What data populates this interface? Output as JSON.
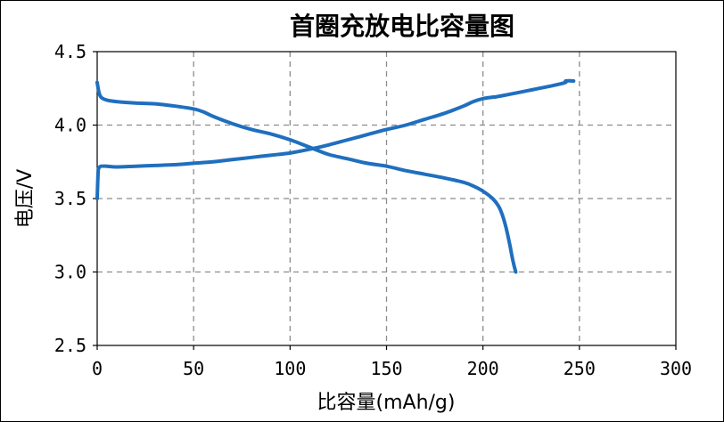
{
  "chart_data": {
    "type": "line",
    "title": "首圈充放电比容量图",
    "xlabel": "比容量(mAh/g)",
    "ylabel": "电压/V",
    "xlim": [
      0,
      300
    ],
    "ylim": [
      2.5,
      4.5
    ],
    "xticks": [
      "0",
      "50",
      "100",
      "150",
      "200",
      "250",
      "300"
    ],
    "yticks": [
      "2.5",
      "3.0",
      "3.5",
      "4.0",
      "4.5"
    ],
    "grid": true,
    "legend": false,
    "line_color": "#1f6fbf",
    "series": [
      {
        "x": [
          0,
          0.5,
          1,
          2,
          5,
          10,
          20,
          30,
          40,
          50,
          60,
          70,
          80,
          90,
          100,
          110,
          120,
          130,
          140,
          150,
          160,
          170,
          180,
          190,
          195,
          200,
          205,
          210,
          240,
          243,
          247
        ],
        "y": [
          3.5,
          3.68,
          3.71,
          3.72,
          3.72,
          3.715,
          3.72,
          3.725,
          3.73,
          3.74,
          3.75,
          3.765,
          3.78,
          3.795,
          3.81,
          3.835,
          3.865,
          3.9,
          3.935,
          3.97,
          4.0,
          4.04,
          4.08,
          4.13,
          4.16,
          4.18,
          4.19,
          4.2,
          4.28,
          4.3,
          4.3
        ]
      },
      {
        "x": [
          0,
          0.5,
          1,
          2,
          5,
          10,
          20,
          30,
          40,
          50,
          55,
          60,
          70,
          80,
          90,
          100,
          110,
          120,
          130,
          140,
          150,
          160,
          170,
          180,
          190,
          195,
          200,
          205,
          208,
          210,
          212,
          214,
          215,
          216,
          217
        ],
        "y": [
          4.29,
          4.25,
          4.22,
          4.19,
          4.17,
          4.16,
          4.15,
          4.145,
          4.13,
          4.11,
          4.09,
          4.06,
          4.01,
          3.97,
          3.94,
          3.9,
          3.85,
          3.8,
          3.77,
          3.74,
          3.72,
          3.69,
          3.665,
          3.64,
          3.61,
          3.585,
          3.55,
          3.5,
          3.45,
          3.39,
          3.3,
          3.18,
          3.11,
          3.05,
          3.0
        ]
      }
    ]
  }
}
